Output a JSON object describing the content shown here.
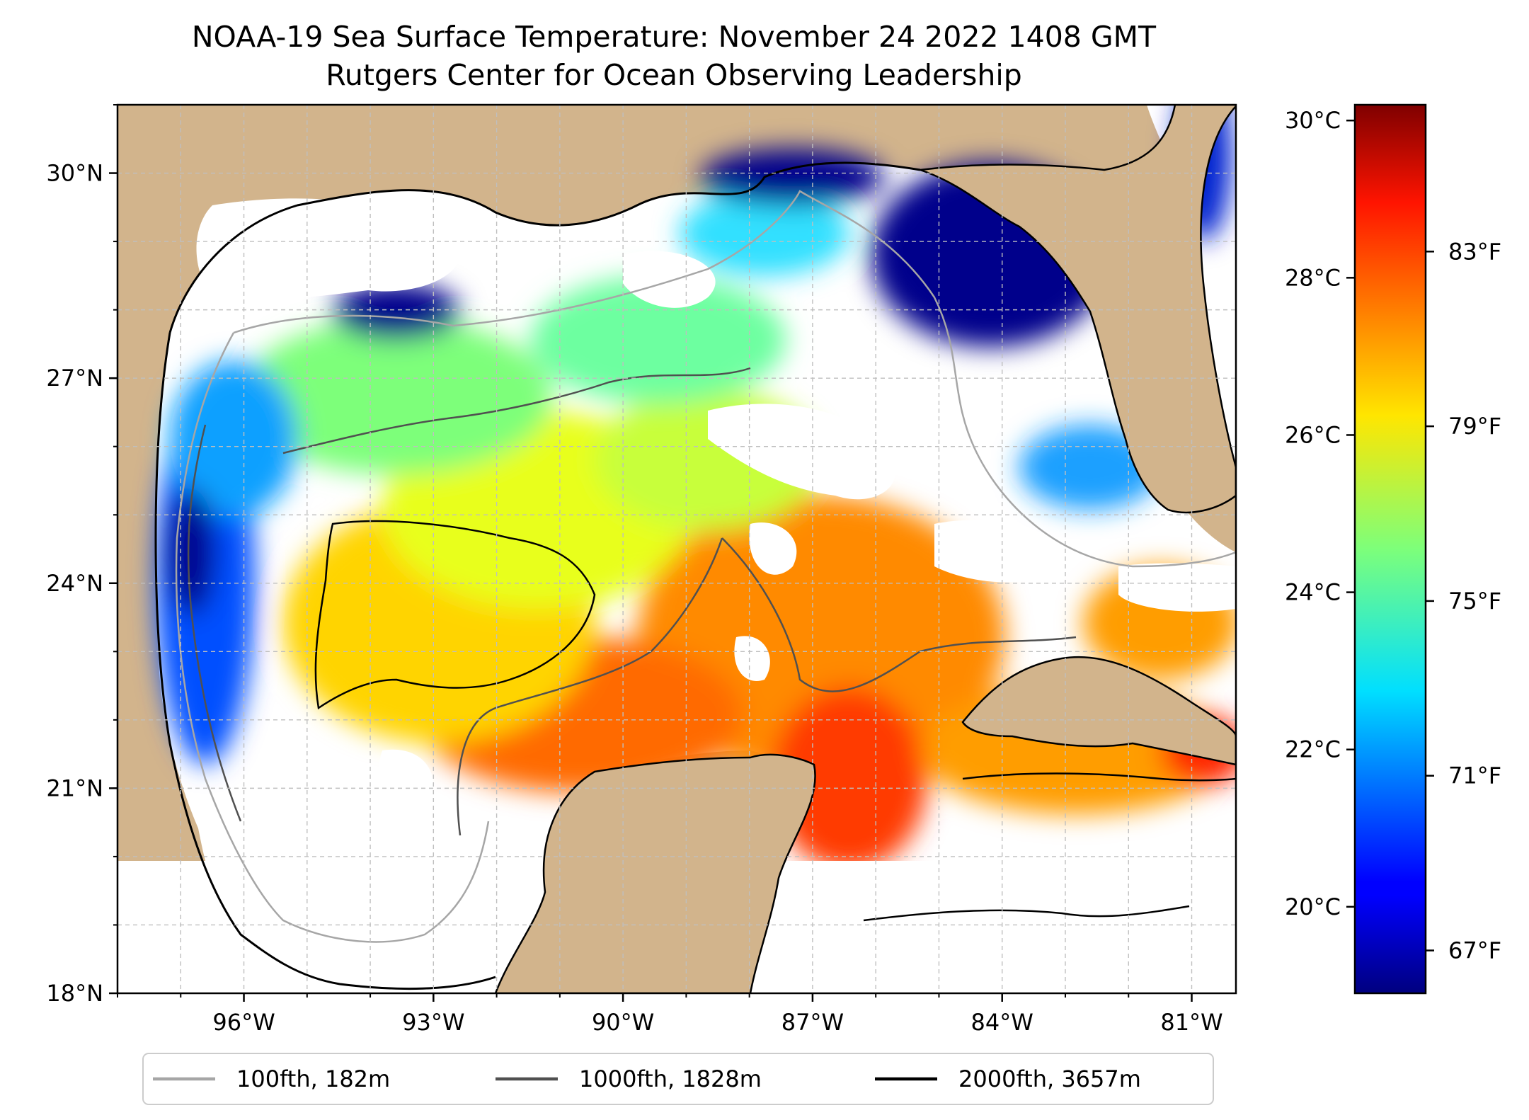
{
  "title": {
    "line1": "NOAA-19 Sea Surface Temperature: November 24 2022 1408 GMT",
    "line2": "Rutgers Center for Ocean Observing Leadership"
  },
  "map": {
    "lon_range": [
      -98,
      -80.3
    ],
    "lat_range": [
      18,
      31
    ],
    "land_color": "#d2b48c",
    "no_data_color": "#ffffff",
    "lat_ticks": [
      {
        "value": 30,
        "label": "30°N"
      },
      {
        "value": 27,
        "label": "27°N"
      },
      {
        "value": 24,
        "label": "24°N"
      },
      {
        "value": 21,
        "label": "21°N"
      },
      {
        "value": 18,
        "label": "18°N"
      }
    ],
    "lon_ticks": [
      {
        "value": -96,
        "label": "96°W"
      },
      {
        "value": -93,
        "label": "93°W"
      },
      {
        "value": -90,
        "label": "90°W"
      },
      {
        "value": -87,
        "label": "87°W"
      },
      {
        "value": -84,
        "label": "84°W"
      },
      {
        "value": -81,
        "label": "81°W"
      }
    ],
    "grid": true
  },
  "colorbar": {
    "colormap": "jet",
    "celsius_range": [
      18.9,
      30.2
    ],
    "celsius_ticks": [
      {
        "value": 30,
        "label": "30°C"
      },
      {
        "value": 28,
        "label": "28°C"
      },
      {
        "value": 26,
        "label": "26°C"
      },
      {
        "value": 24,
        "label": "24°C"
      },
      {
        "value": 22,
        "label": "22°C"
      },
      {
        "value": 20,
        "label": "20°C"
      }
    ],
    "fahrenheit_ticks": [
      {
        "value": 83,
        "label": "83°F"
      },
      {
        "value": 79,
        "label": "79°F"
      },
      {
        "value": 75,
        "label": "75°F"
      },
      {
        "value": 71,
        "label": "71°F"
      },
      {
        "value": 67,
        "label": "67°F"
      }
    ]
  },
  "legend": {
    "placement": "bottom",
    "items": [
      {
        "label": "100fth, 182m",
        "color": "#a6a6a6"
      },
      {
        "label": "1000fth, 1828m",
        "color": "#505050"
      },
      {
        "label": "2000fth, 3657m",
        "color": "#000000"
      }
    ]
  }
}
